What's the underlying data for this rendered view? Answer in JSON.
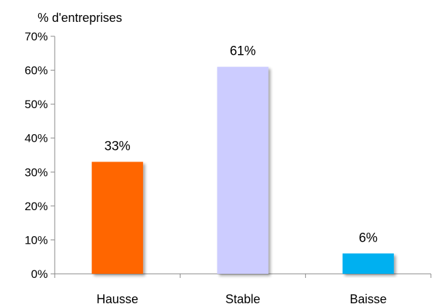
{
  "chart_data": {
    "type": "bar",
    "ylabel": "% d'entreprises",
    "categories": [
      "Hausse",
      "Stable",
      "Baisse"
    ],
    "values": [
      33,
      61,
      6
    ],
    "data_labels": [
      "33%",
      "61%",
      "6%"
    ],
    "ylim": [
      0,
      70
    ],
    "yticks": [
      0,
      10,
      20,
      30,
      40,
      50,
      60,
      70
    ],
    "ytick_labels": [
      "0%",
      "10%",
      "20%",
      "30%",
      "40%",
      "50%",
      "60%",
      "70%"
    ],
    "bar_colors": [
      "#FF6600",
      "#CCCCFF",
      "#00B0F0"
    ],
    "grid": false,
    "legend": "none"
  }
}
